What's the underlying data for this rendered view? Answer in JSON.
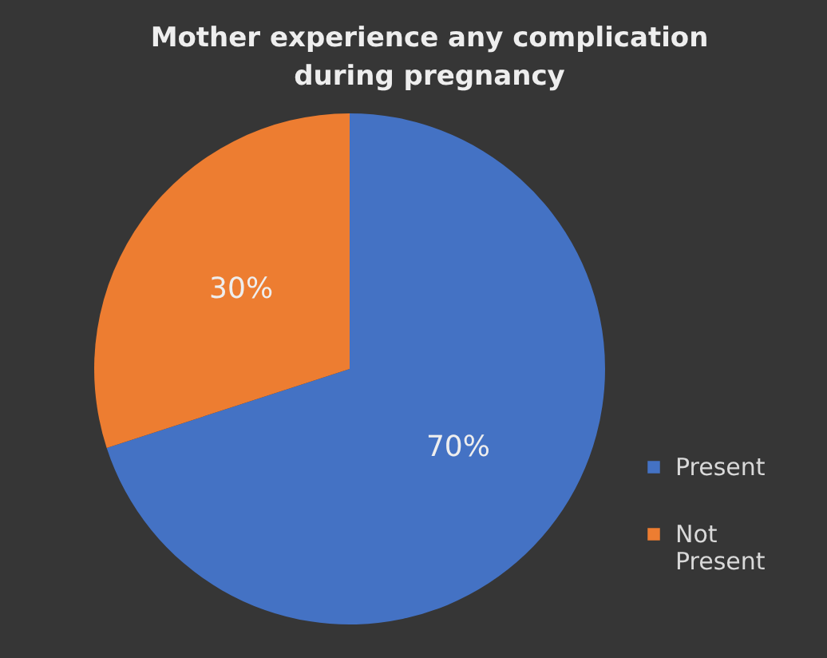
{
  "chart_data": {
    "type": "pie",
    "title": "Mother experience any complication during pregnancy",
    "categories": [
      "Present",
      "Not Present"
    ],
    "values": [
      70,
      30
    ],
    "colors": [
      "#4472c4",
      "#ed7d31"
    ],
    "value_labels": [
      "70%",
      "30%"
    ],
    "legend": "bottom right"
  }
}
